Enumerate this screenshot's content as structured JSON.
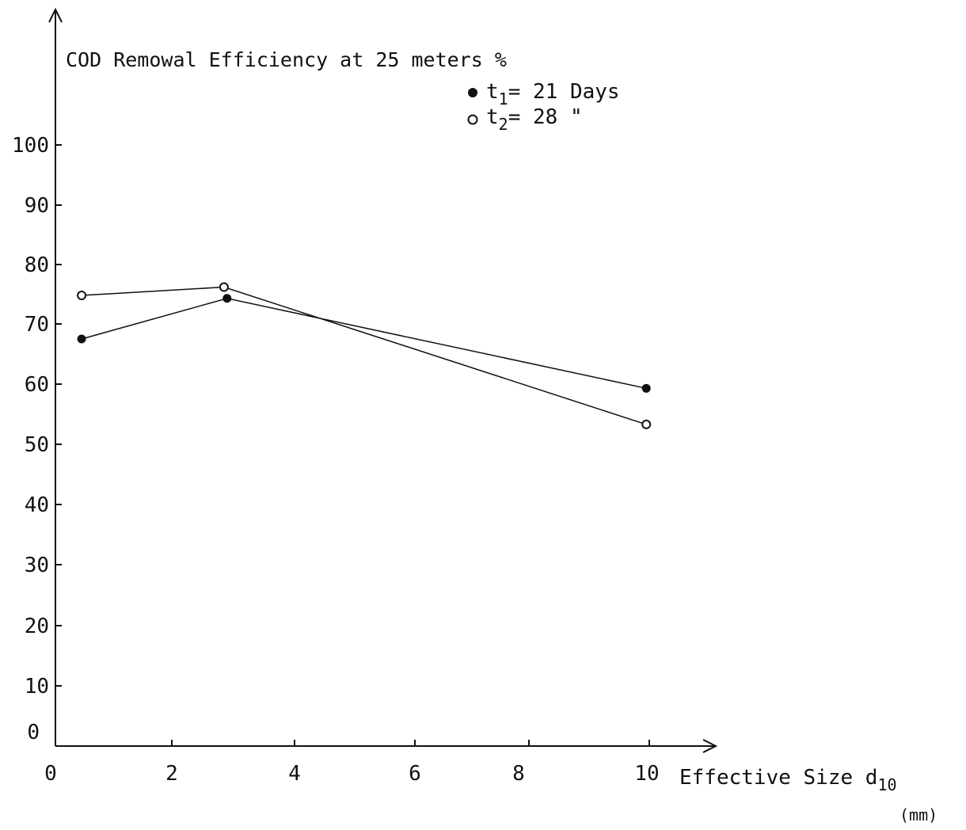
{
  "chart_data": {
    "type": "line",
    "title": "COD Remowal Efficiency at 25 meters %",
    "xlabel": {
      "main": "Effective Size d",
      "subscript": "10",
      "unit": "(mm)"
    },
    "ylabel": "",
    "xlim": [
      0,
      10
    ],
    "ylim": [
      0,
      100
    ],
    "x_ticks": [
      0,
      2,
      4,
      6,
      8,
      10
    ],
    "y_ticks": [
      0,
      10,
      20,
      30,
      40,
      50,
      60,
      70,
      80,
      90,
      100
    ],
    "grid": false,
    "legend_position": "top-right",
    "series": [
      {
        "name": "t1= 21 Days",
        "legend": {
          "symbol": "●",
          "pre": "t",
          "sub": "1",
          "post": "= 21 Days"
        },
        "marker": "filled-circle",
        "x": [
          0.45,
          2.9,
          9.95
        ],
        "y": [
          67.5,
          74.3,
          59.3
        ]
      },
      {
        "name": "t2= 28 \"",
        "legend": {
          "symbol": "○",
          "pre": "t",
          "sub": "2",
          "post": "= 28    \""
        },
        "marker": "open-circle",
        "x": [
          0.45,
          2.85,
          9.95
        ],
        "y": [
          74.8,
          76.2,
          53.3
        ]
      }
    ]
  }
}
